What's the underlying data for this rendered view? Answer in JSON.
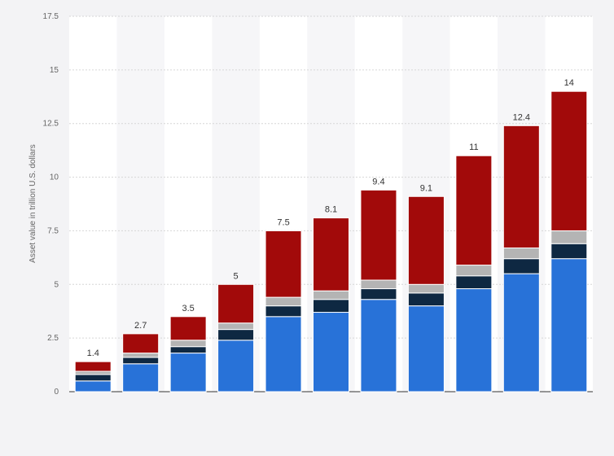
{
  "chart_data": {
    "type": "bar",
    "stacked": true,
    "xlabel": "",
    "ylabel": "Asset value in trillion U.S. dollars",
    "ylim": [
      0,
      17.5
    ],
    "yticks": [
      "0",
      "2.5",
      "5",
      "7.5",
      "10",
      "12.5",
      "15",
      "17.5"
    ],
    "grid": true,
    "categories": [
      "",
      "",
      "",
      "",
      "",
      "",
      "",
      "",
      "",
      "",
      ""
    ],
    "totals": [
      "1.4",
      "2.7",
      "3.5",
      "5",
      "7.5",
      "8.1",
      "9.4",
      "9.1",
      "11",
      "12.4",
      "14"
    ],
    "series": [
      {
        "color": "#2872d8",
        "values": [
          0.5,
          1.3,
          1.8,
          2.4,
          3.5,
          3.7,
          4.3,
          4.0,
          4.8,
          5.5,
          6.2
        ]
      },
      {
        "color": "#0e2842",
        "values": [
          0.3,
          0.3,
          0.3,
          0.5,
          0.5,
          0.6,
          0.5,
          0.6,
          0.6,
          0.7,
          0.7
        ]
      },
      {
        "color": "#b4b4b4",
        "values": [
          0.15,
          0.2,
          0.3,
          0.3,
          0.4,
          0.4,
          0.4,
          0.4,
          0.5,
          0.5,
          0.6
        ]
      },
      {
        "color": "#a20a0a",
        "values": [
          0.45,
          0.9,
          1.1,
          1.8,
          3.1,
          3.4,
          4.2,
          4.1,
          5.1,
          5.7,
          6.5
        ]
      }
    ]
  }
}
